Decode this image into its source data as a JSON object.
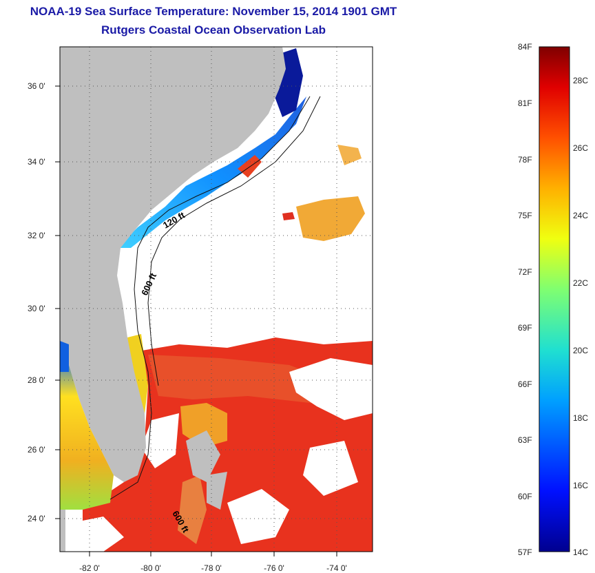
{
  "title": {
    "line1": "NOAA-19 Sea Surface Temperature:  November 15, 2014 1901 GMT",
    "line2": "Rutgers Coastal Ocean Observation Lab"
  },
  "map": {
    "lat_ticks": [
      "36 0'",
      "34 0'",
      "32 0'",
      "30 0'",
      "28 0'",
      "26 0'",
      "24 0'"
    ],
    "lon_ticks": [
      "-82 0'",
      "-80 0'",
      "-78 0'",
      "-76 0'",
      "-74 0'"
    ],
    "isobath_labels": [
      "120 ft",
      "600 ft",
      "600 ft"
    ],
    "colors": {
      "land": "#bfbfbf",
      "cloud": "#ffffff",
      "warm_water": "#e8321e",
      "cool_water": "#1060e0",
      "cold_water": "#0a1a9a"
    }
  },
  "colorbar": {
    "fahrenheit": [
      "84F",
      "81F",
      "78F",
      "75F",
      "72F",
      "69F",
      "66F",
      "63F",
      "60F",
      "57F"
    ],
    "celsius": [
      "28C",
      "26C",
      "24C",
      "22C",
      "20C",
      "18C",
      "16C",
      "14C"
    ]
  }
}
